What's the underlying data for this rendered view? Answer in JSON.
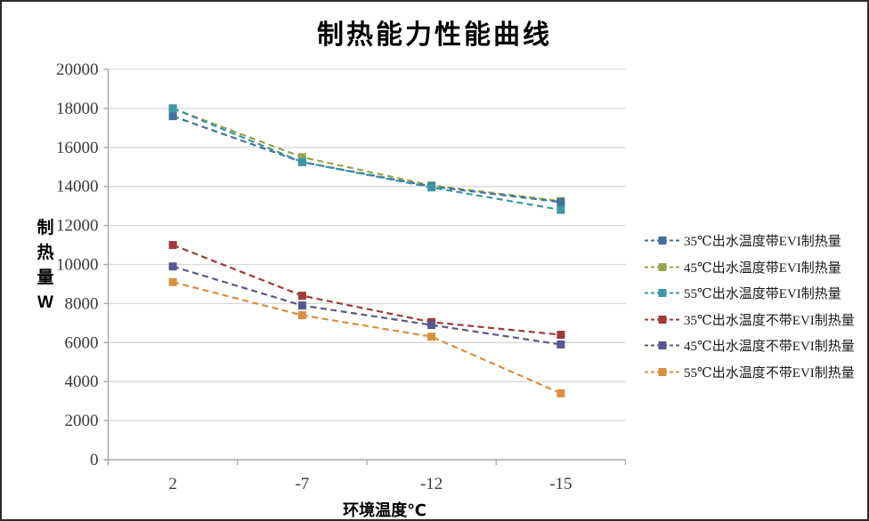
{
  "window": {
    "background": "#ffffff",
    "border_color": "#2b2b2b"
  },
  "chart_data": {
    "type": "line",
    "title": "制热能力性能曲线",
    "xlabel": "环境温度℃",
    "ylabel": "制热量W",
    "categories": [
      "2",
      "-7",
      "-12",
      "-15"
    ],
    "ylim": [
      0,
      20000
    ],
    "ytick_step": 2000,
    "grid": true,
    "legend_position": "right",
    "line_style": "dashed",
    "marker": "square",
    "colors": {
      "gridline": "#d9d9d9",
      "axis": "#a6a6a6",
      "tick_text": "#3a3a3a"
    },
    "series": [
      {
        "name": "35℃出水温度带EVI制热量",
        "color": "#41719C",
        "values": [
          17600,
          15250,
          14000,
          13200
        ]
      },
      {
        "name": "45℃出水温度带EVI制热量",
        "color": "#99A44D",
        "values": [
          18000,
          15500,
          14050,
          13250
        ]
      },
      {
        "name": "55℃出水温度带EVI制热量",
        "color": "#3D96A6",
        "values": [
          18000,
          15250,
          13950,
          12800
        ]
      },
      {
        "name": "35℃出水温度不带EVI制热量",
        "color": "#9E3B39",
        "values": [
          11000,
          8400,
          7050,
          6400
        ]
      },
      {
        "name": "45℃出水温度不带EVI制热量",
        "color": "#59598F",
        "values": [
          9900,
          7900,
          6900,
          5900
        ]
      },
      {
        "name": "55℃出水温度不带EVI制热量",
        "color": "#D98F3F",
        "values": [
          9100,
          7400,
          6300,
          3400
        ]
      }
    ]
  }
}
